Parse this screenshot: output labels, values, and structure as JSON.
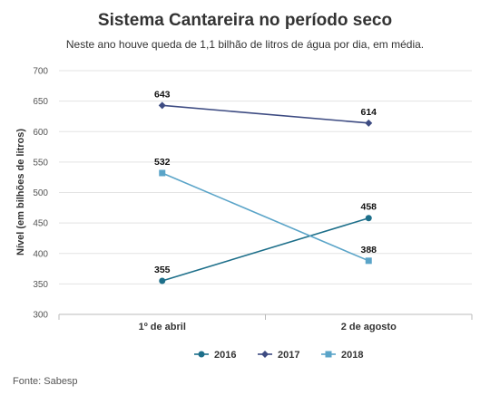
{
  "title": "Sistema Cantareira no período seco",
  "subtitle": "Neste ano houve queda de 1,1 bilhão de litros de água por dia, em média.",
  "source": "Fonte: Sabesp",
  "chart_data": {
    "type": "line",
    "title": "Sistema Cantareira no período seco",
    "subtitle": "Neste ano houve queda de 1,1 bilhão de litros de água por dia, em média.",
    "xlabel": "",
    "ylabel": "Nível (em bilhões de litros)",
    "categories": [
      "1º de abril",
      "2 de agosto"
    ],
    "ylim": [
      300,
      700
    ],
    "yticks": [
      300,
      350,
      400,
      450,
      500,
      550,
      600,
      650,
      700
    ],
    "grid": true,
    "legend_position": "bottom",
    "series": [
      {
        "name": "2016",
        "values": [
          355,
          458
        ],
        "color": "#1d6f8a",
        "marker": "circle"
      },
      {
        "name": "2017",
        "values": [
          643,
          614
        ],
        "color": "#3d4b82",
        "marker": "diamond"
      },
      {
        "name": "2018",
        "values": [
          532,
          388
        ],
        "color": "#5aa4c8",
        "marker": "square"
      }
    ]
  }
}
